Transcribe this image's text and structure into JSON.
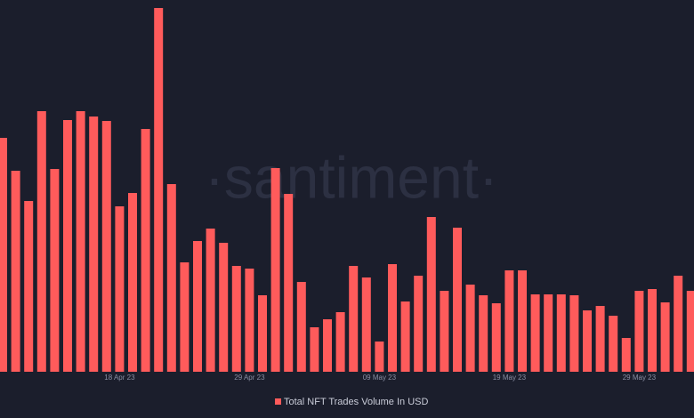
{
  "chart_data": {
    "type": "bar",
    "watermark": "·santiment·",
    "series": [
      {
        "name": "Total NFT Trades Volume In USD",
        "color": "#ff5b5b",
        "values": [
          263,
          226,
          192,
          293,
          228,
          283,
          293,
          287,
          282,
          186,
          201,
          273,
          409,
          211,
          123,
          147,
          161,
          145,
          119,
          116,
          86,
          229,
          200,
          101,
          50,
          59,
          67,
          119,
          106,
          34,
          121,
          79,
          108,
          174,
          91,
          162,
          98,
          86,
          77,
          114,
          114,
          87,
          87,
          87,
          86,
          69,
          74,
          63,
          38,
          91,
          93,
          78,
          108,
          91
        ]
      }
    ],
    "categories": [
      null,
      null,
      null,
      null,
      null,
      null,
      null,
      null,
      null,
      "18 Apr 23",
      null,
      null,
      null,
      null,
      null,
      null,
      null,
      null,
      null,
      "29 Apr 23",
      null,
      null,
      null,
      null,
      null,
      null,
      null,
      null,
      null,
      "09 May 23",
      null,
      null,
      null,
      null,
      null,
      null,
      null,
      null,
      null,
      "19 May 23",
      null,
      null,
      null,
      null,
      null,
      null,
      null,
      null,
      null,
      "29 May 23",
      null,
      null,
      null,
      null
    ],
    "ylim": [
      0,
      420
    ]
  }
}
